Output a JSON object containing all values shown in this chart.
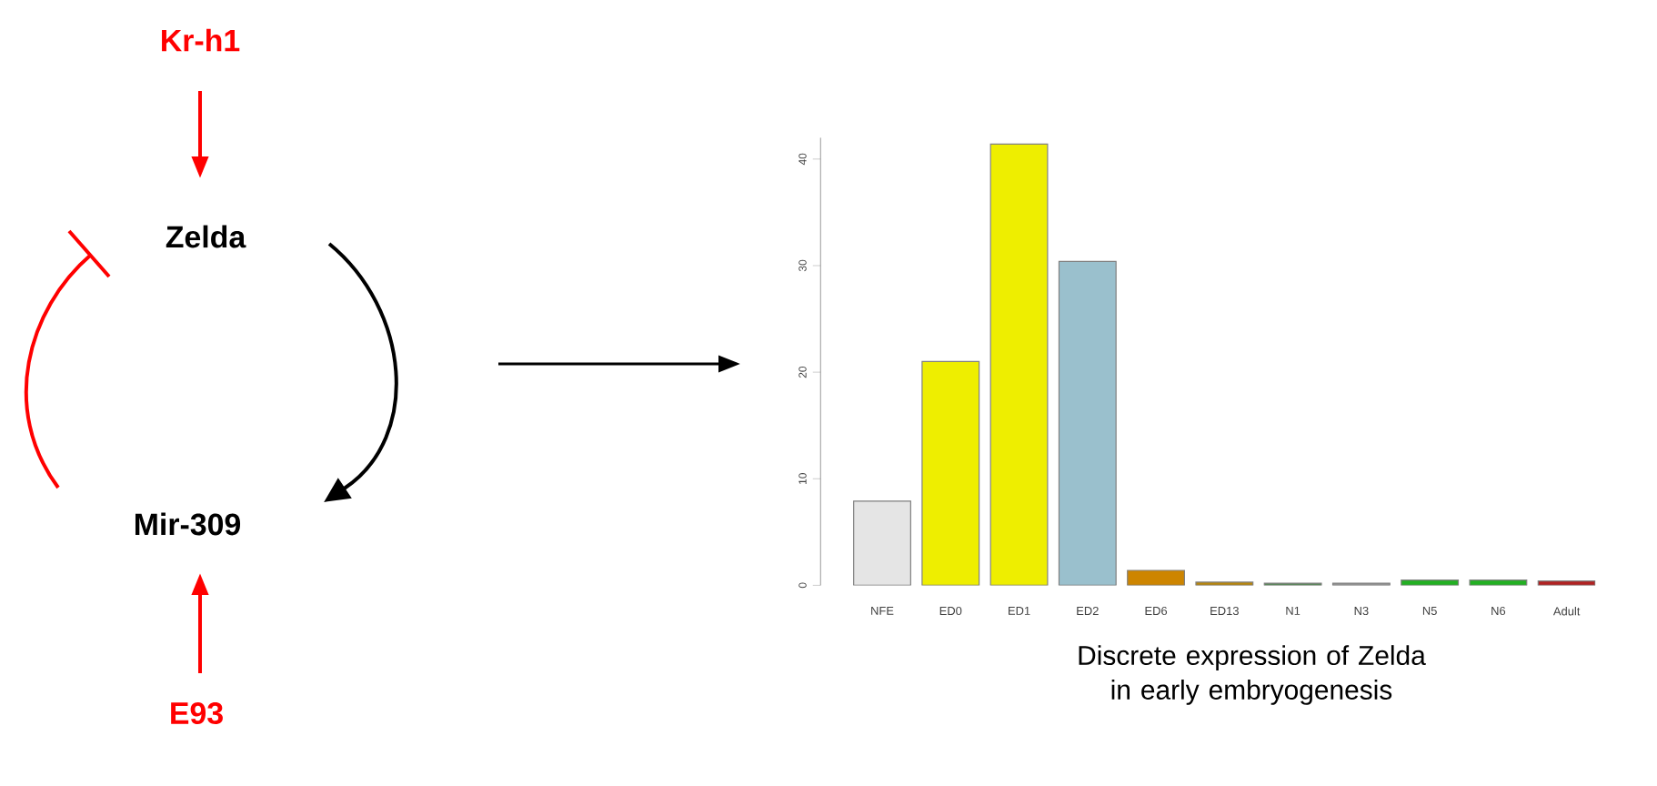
{
  "chart_data": [
    {
      "type": "other",
      "annotations": [
        "Kr-h1",
        "Zelda",
        "Mir-309",
        "E93"
      ]
    },
    {
      "type": "bar",
      "title": "Discrete expression of Zelda in early embryogenesis",
      "categories": [
        "NFE",
        "ED0",
        "ED1",
        "ED2",
        "ED6",
        "ED13",
        "N1",
        "N3",
        "N5",
        "N6",
        "Adult"
      ],
      "values": [
        7.9,
        21.0,
        41.4,
        30.4,
        1.4,
        0.3,
        0.2,
        0.2,
        0.5,
        0.5,
        0.4
      ],
      "colors": [
        "#e5e5e5",
        "#eeee00",
        "#eeee00",
        "#9ac0cd",
        "#cd8500",
        "#b8860b",
        "#548b54",
        "#999999",
        "#22b022",
        "#22b022",
        "#b22222"
      ],
      "ylim": [
        0,
        42
      ],
      "yticks": [
        0,
        10,
        20,
        30,
        40
      ]
    }
  ]
}
